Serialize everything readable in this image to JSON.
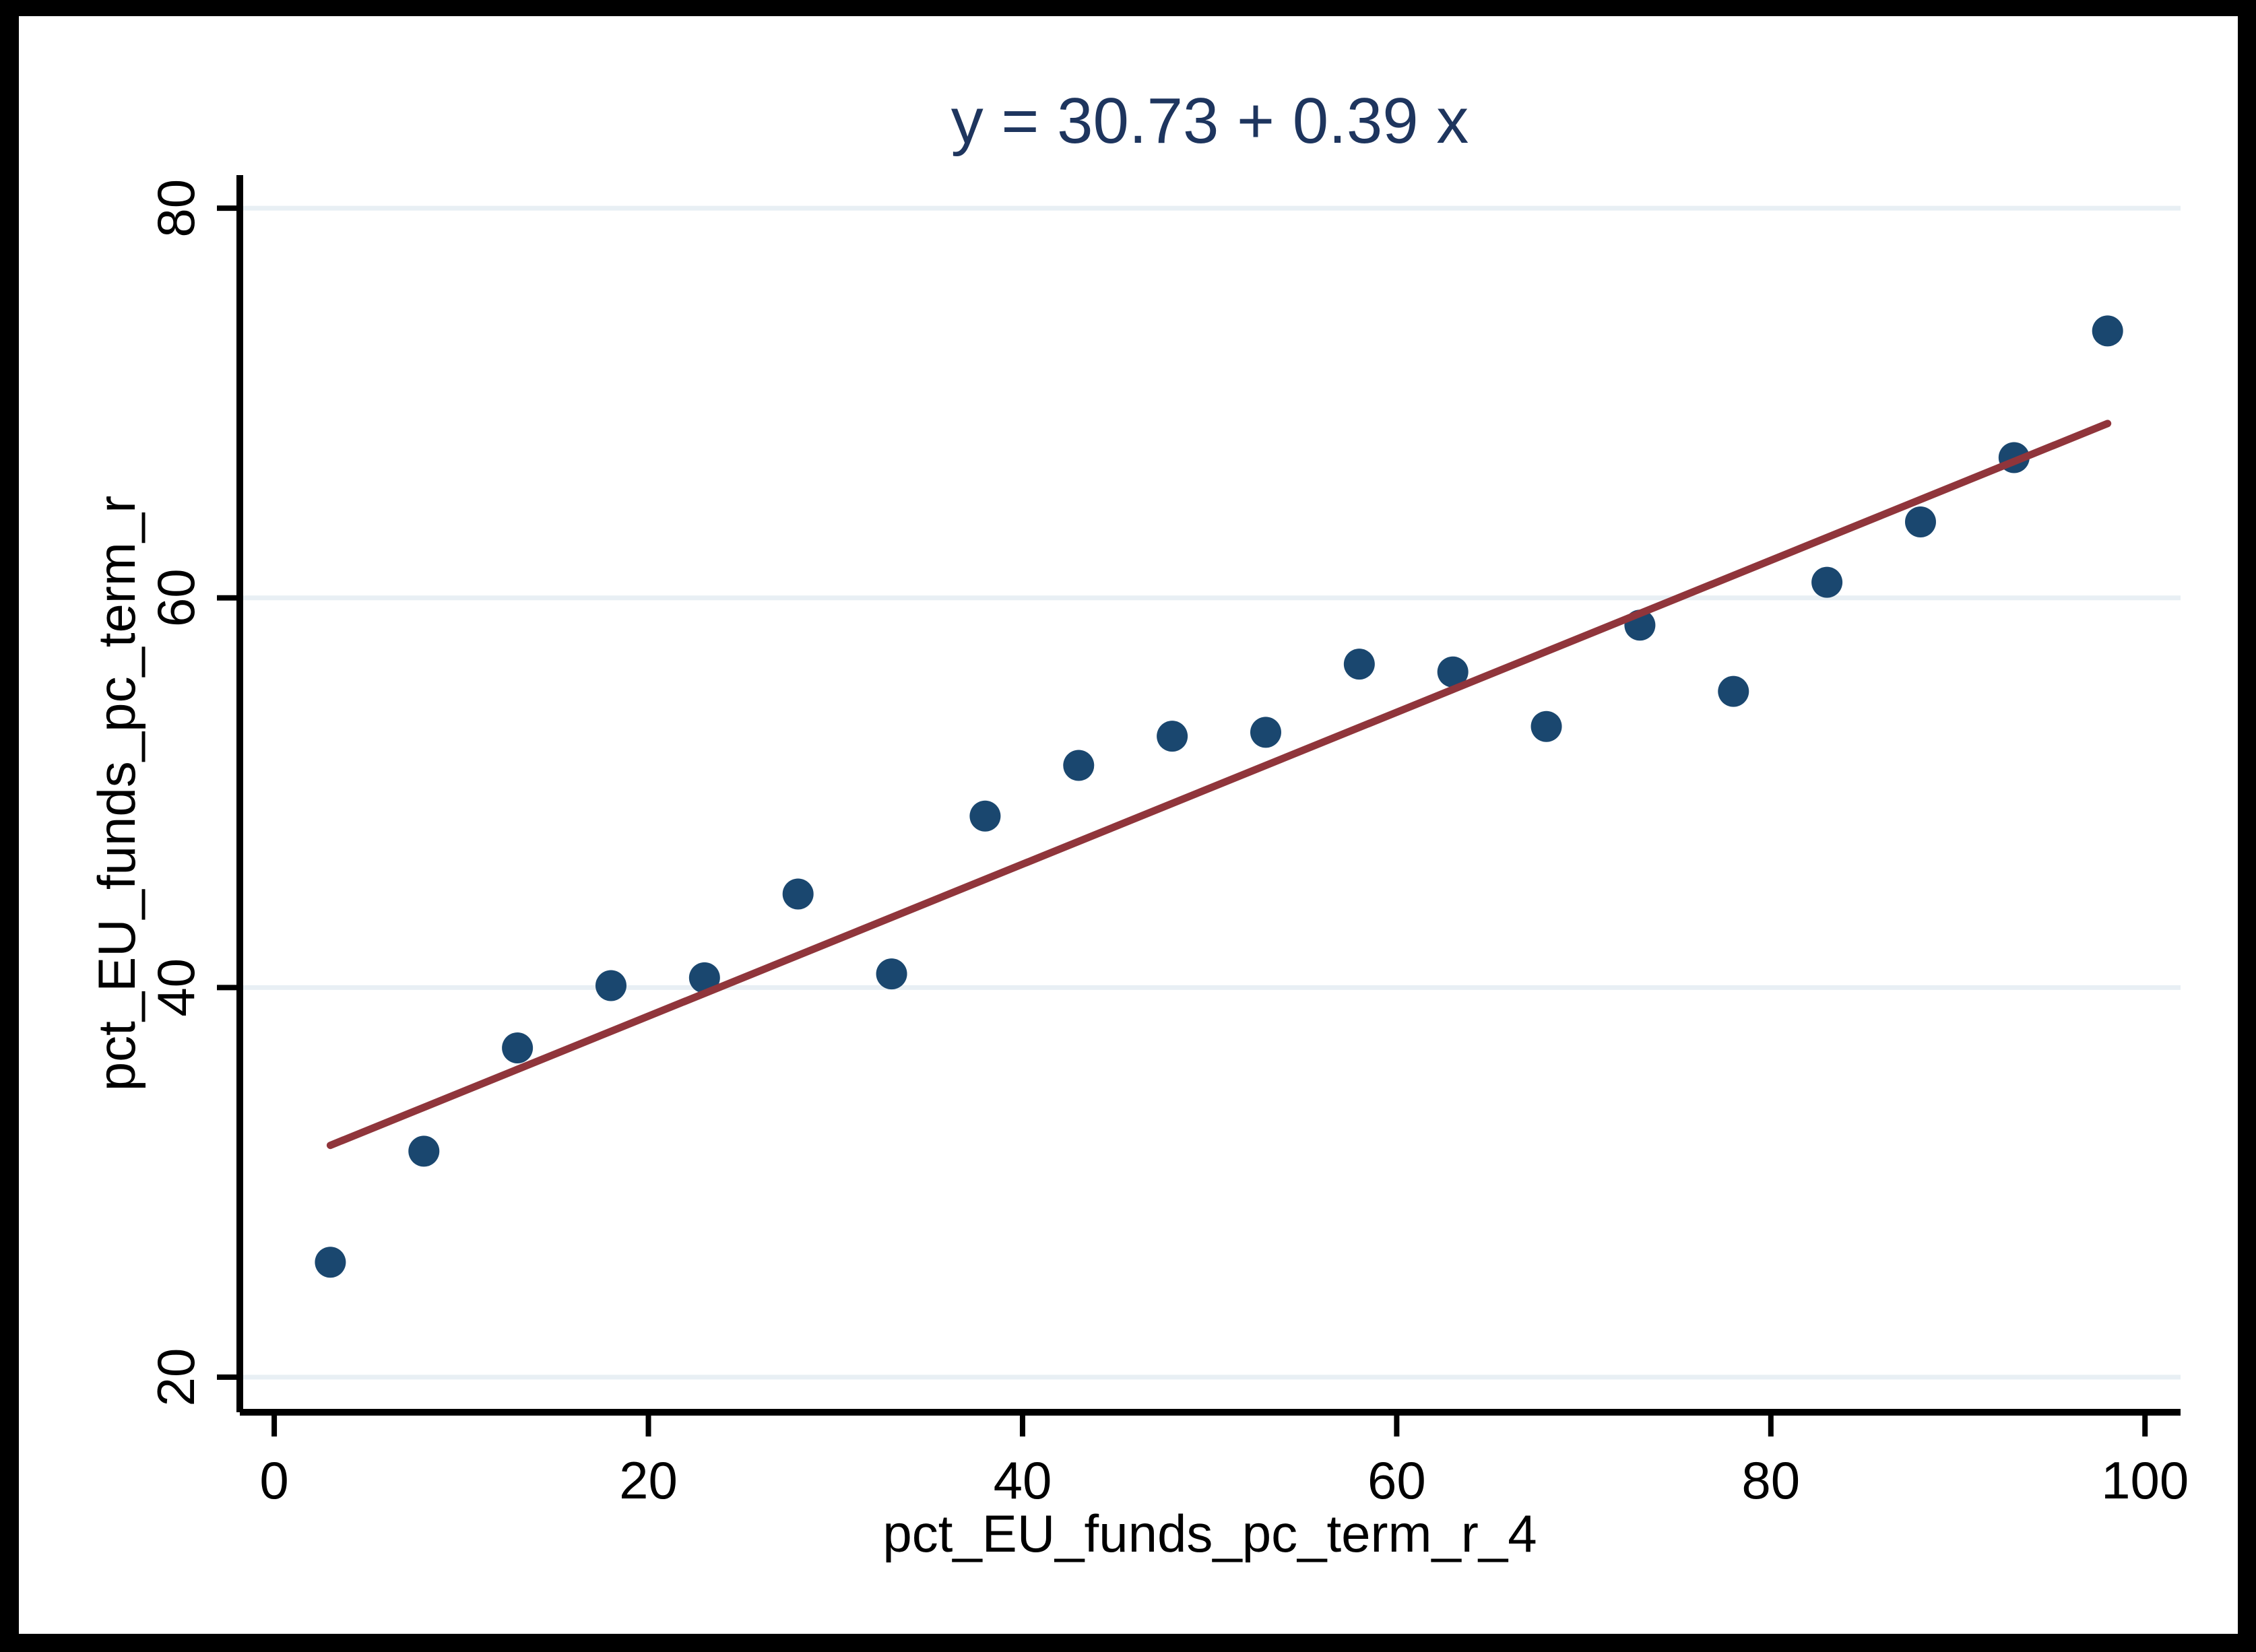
{
  "figure": {
    "frame_color": "#000000",
    "background_color": "#ffffff"
  },
  "chart_data": {
    "type": "scatter",
    "title": "y = 30.73 + 0.39 x",
    "xlabel": "pct_EU_funds_pc_term_r_4",
    "ylabel": "pct_EU_funds_pc_term_r",
    "x_ticks": [
      0,
      20,
      40,
      60,
      80,
      100
    ],
    "y_ticks": [
      20,
      40,
      60,
      80
    ],
    "xlim": [
      -1.84,
      101.9
    ],
    "ylim": [
      18.2,
      81.7
    ],
    "grid": "horizontal-only",
    "legend": "none",
    "x": [
      3,
      8,
      13,
      18,
      23,
      28,
      33,
      38,
      43,
      48,
      53,
      58,
      63,
      68,
      73,
      78,
      83,
      88,
      93,
      98
    ],
    "y": [
      25.9,
      31.6,
      36.9,
      40.1,
      40.5,
      44.8,
      40.7,
      48.8,
      51.4,
      52.9,
      53.1,
      56.6,
      56.2,
      53.4,
      58.6,
      55.2,
      60.8,
      63.9,
      67.2,
      73.7
    ],
    "fit_line": {
      "label": "y = 30.73 + 0.39 x",
      "intercept": 30.73,
      "slope": 0.39,
      "x_start": 3,
      "x_end": 98
    },
    "colors": {
      "marker": "#1a476f",
      "fit_line": "#90353b",
      "grid": "#e8eff4",
      "axis": "#000000",
      "title": "#1e355e"
    }
  }
}
